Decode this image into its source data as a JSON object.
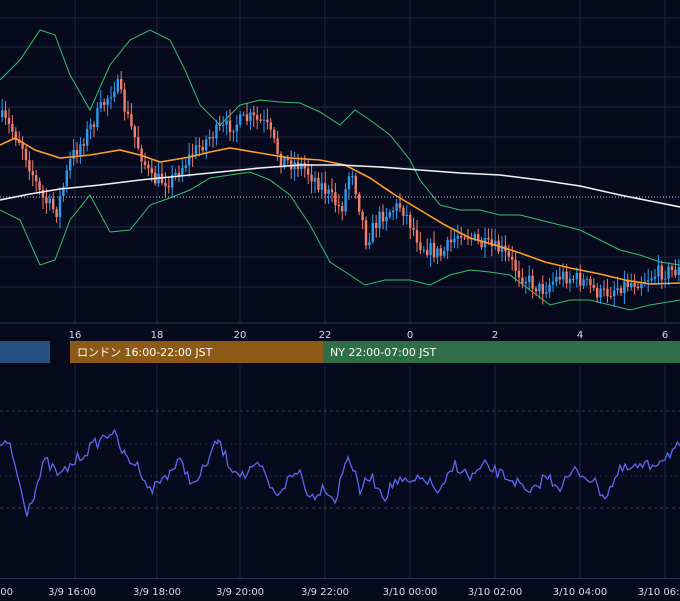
{
  "chart_data": [
    {
      "type": "candlestick",
      "title": "",
      "x_ticks": [
        "16",
        "18",
        "20",
        "22",
        "0",
        "2",
        "4",
        "6"
      ],
      "indicators": [
        {
          "name": "",
          "kind": "bollinger",
          "color": "#35c06a"
        },
        {
          "name": "",
          "kind": "moving-average-short",
          "color": "#ff9f2a"
        },
        {
          "name": "",
          "kind": "moving-average-long",
          "color": "#f4f4f4"
        }
      ],
      "grid": true,
      "dotted_reference_line": true,
      "colors": {
        "up": "#2e9bf0",
        "down": "#f07f6c",
        "background": "#070a1d",
        "grid": "#1e2544"
      }
    },
    {
      "type": "line",
      "title": "",
      "series": [
        {
          "name": "",
          "color": "#5d68f0"
        }
      ],
      "grid": true
    }
  ],
  "sessions": [
    {
      "label": "",
      "color": "#25507f"
    },
    {
      "label": "ロンドン 16:00-22:00 JST",
      "color": "#8c5a16"
    },
    {
      "label": "NY 22:00-07:00 JST",
      "color": "#2f6e47"
    }
  ],
  "bottom_axis": {
    "ticks": [
      ".00",
      "3/9 16:00",
      "3/9 18:00",
      "3/9 20:00",
      "3/9 22:00",
      "3/10 00:00",
      "3/10 02:00",
      "3/10 04:00",
      "3/10 06:00"
    ]
  }
}
